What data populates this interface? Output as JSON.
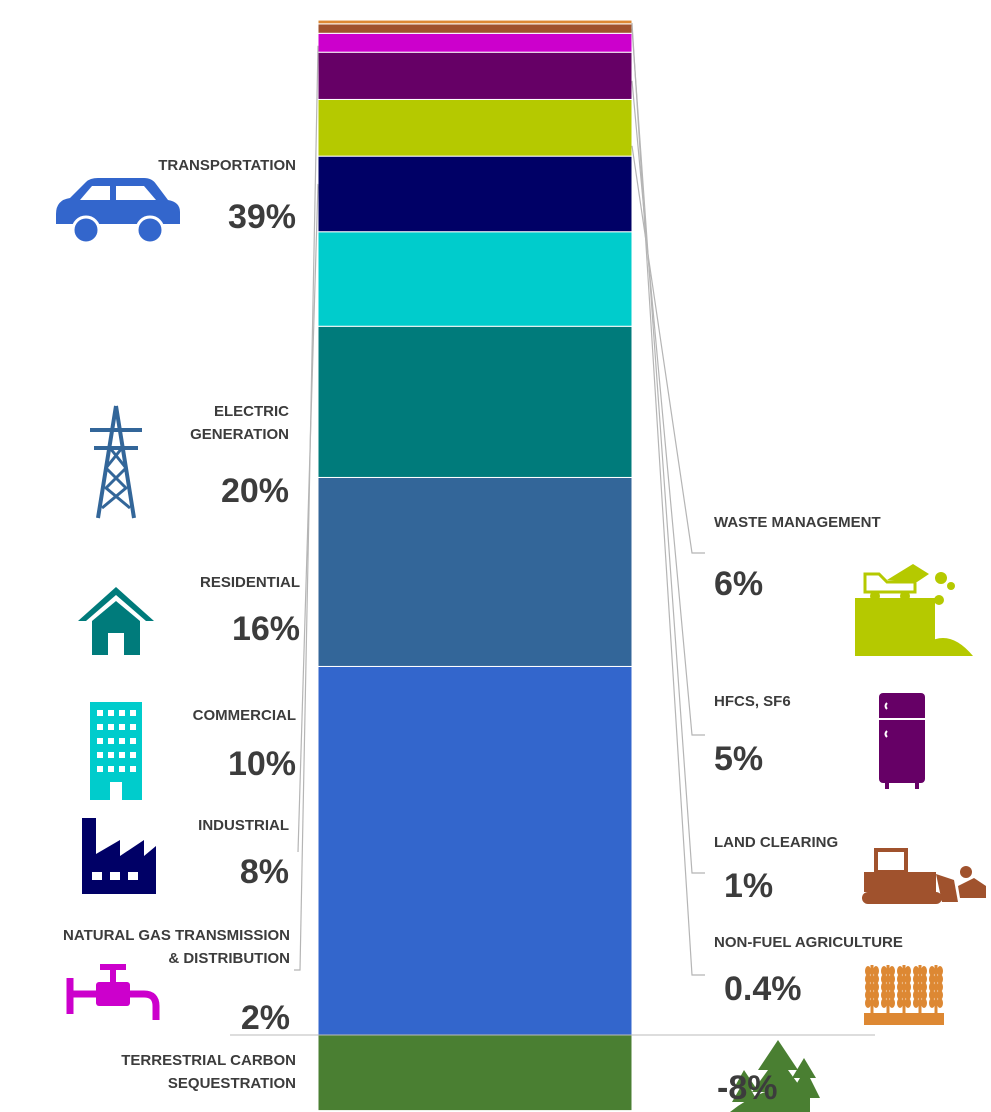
{
  "chart_data": {
    "type": "bar",
    "subtype": "stacked-single-column",
    "unit": "%",
    "categories": [
      "TRANSPORTATION",
      "ELECTRIC GENERATION",
      "RESIDENTIAL",
      "COMMERCIAL",
      "INDUSTRIAL",
      "WASTE MANAGEMENT",
      "HFCS, SF6",
      "NATURAL GAS TRANSMISSION & DISTRIBUTION",
      "LAND CLEARING",
      "NON-FUEL AGRICULTURE",
      "TERRESTRIAL CARBON SEQUESTRATION"
    ],
    "values": [
      39,
      20,
      16,
      10,
      8,
      6,
      5,
      2,
      1,
      0.4,
      -8
    ],
    "value_labels": [
      "39%",
      "20%",
      "16%",
      "10%",
      "8%",
      "6%",
      "5%",
      "2%",
      "1%",
      "0.4%",
      "-8%"
    ],
    "colors": [
      "#3366cc",
      "#336699",
      "#007b7b",
      "#00cccc",
      "#000066",
      "#b5c900",
      "#660066",
      "#cc00cc",
      "#a0522d",
      "#dd8833",
      "#4a7f32"
    ],
    "icons": [
      "car-icon",
      "power-tower-icon",
      "house-icon",
      "office-building-icon",
      "factory-icon",
      "dump-truck-icon",
      "refrigerator-icon",
      "gas-pipe-valve-icon",
      "bulldozer-icon",
      "wheat-icon",
      "trees-icon"
    ],
    "label_side": [
      "left",
      "left",
      "left",
      "left",
      "left",
      "right",
      "right",
      "left",
      "right",
      "right",
      "right"
    ],
    "name_lines": [
      [
        "TRANSPORTATION"
      ],
      [
        "ELECTRIC",
        "GENERATION"
      ],
      [
        "RESIDENTIAL"
      ],
      [
        "COMMERCIAL"
      ],
      [
        "INDUSTRIAL"
      ],
      [
        "WASTE MANAGEMENT"
      ],
      [
        "HFCS, SF6"
      ],
      [
        "NATURAL GAS TRANSMISSION",
        "& DISTRIBUTION"
      ],
      [
        "LAND CLEARING"
      ],
      [
        "NON-FUEL AGRICULTURE"
      ],
      [
        "TERRESTRIAL CARBON",
        "SEQUESTRATION"
      ]
    ],
    "baseline": 0,
    "legend": "none",
    "grid": false
  }
}
